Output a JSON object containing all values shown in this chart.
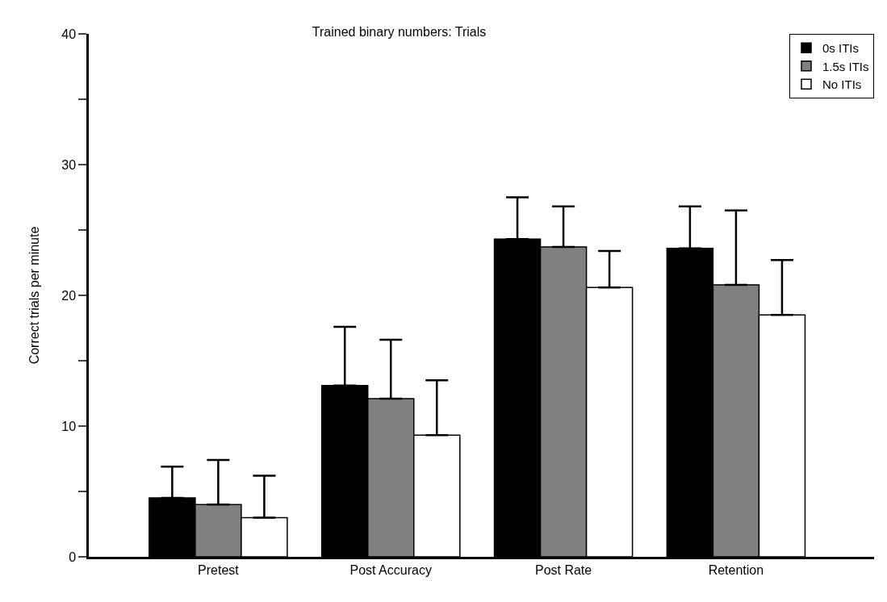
{
  "chart_data": {
    "type": "bar",
    "title": "Trained binary numbers: Trials",
    "ylabel": "Correct trials per minute",
    "categories": [
      "Pretest",
      "Post Accuracy",
      "Post Rate",
      "Retention"
    ],
    "series": [
      {
        "name": "0s ITIs",
        "color": "#000000",
        "values": [
          4.5,
          13.1,
          24.3,
          23.6
        ],
        "errors": [
          [
            4.5,
            6.9
          ],
          [
            13.1,
            17.6
          ],
          [
            24.3,
            27.5
          ],
          [
            23.6,
            26.8
          ]
        ]
      },
      {
        "name": "1.5s ITIs",
        "color": "#808080",
        "values": [
          4.0,
          12.1,
          23.7,
          20.8
        ],
        "errors": [
          [
            4.0,
            7.4
          ],
          [
            12.1,
            16.6
          ],
          [
            23.7,
            26.8
          ],
          [
            20.8,
            26.5
          ]
        ]
      },
      {
        "name": "No ITIs",
        "color": "#ffffff",
        "values": [
          3.0,
          9.3,
          20.6,
          18.5
        ],
        "errors": [
          [
            3.0,
            6.2
          ],
          [
            9.3,
            13.5
          ],
          [
            20.6,
            23.4
          ],
          [
            18.5,
            22.7
          ]
        ]
      }
    ],
    "ylim": [
      0,
      40
    ],
    "yticks": [
      0,
      {
        "value": 5,
        "label": null
      },
      10,
      {
        "value": 15,
        "label": null
      },
      20,
      {
        "value": 25,
        "label": null
      },
      30,
      {
        "value": 35,
        "label": null
      },
      40
    ],
    "grid": false,
    "legend": "top right"
  }
}
